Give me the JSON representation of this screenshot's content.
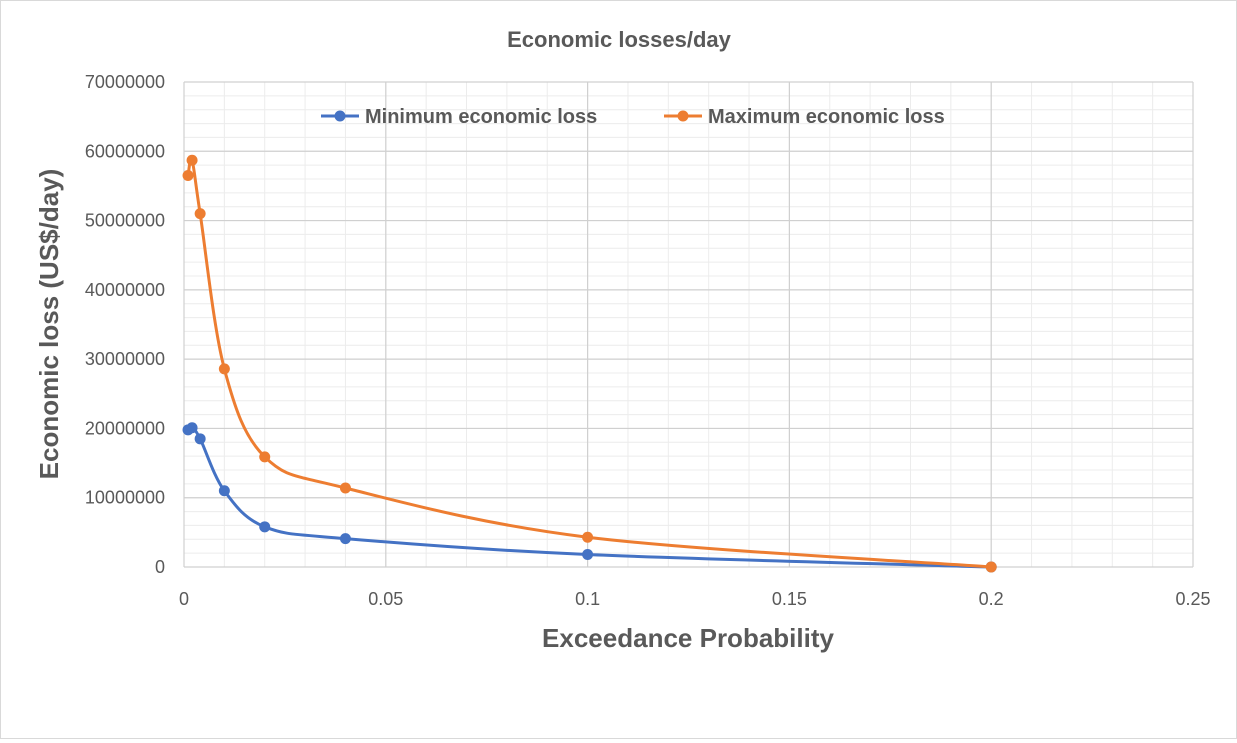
{
  "chart_data": {
    "type": "scatter",
    "title": "Economic losses/day",
    "xlabel": "Exceedance Probability",
    "ylabel": "Economic loss (US$/day)",
    "xlim": [
      0,
      0.25
    ],
    "ylim": [
      0,
      70000000
    ],
    "x_ticks": [
      "0",
      "0.05",
      "0.1",
      "0.15",
      "0.2",
      "0.25"
    ],
    "y_ticks": [
      "0",
      "10000000",
      "20000000",
      "30000000",
      "40000000",
      "50000000",
      "60000000",
      "70000000"
    ],
    "grid": true,
    "minor_grid": true,
    "smooth_lines": true,
    "legend_position": "top",
    "series": [
      {
        "name": "Minimum economic loss",
        "color": "#4472C4",
        "x": [
          0.001,
          0.002,
          0.004,
          0.01,
          0.02,
          0.04,
          0.1,
          0.2
        ],
        "y": [
          19800000,
          20100000,
          18500000,
          11000000,
          5800000,
          4100000,
          1800000,
          0
        ]
      },
      {
        "name": "Maximum economic loss",
        "color": "#ED7D31",
        "x": [
          0.001,
          0.002,
          0.004,
          0.01,
          0.02,
          0.04,
          0.1,
          0.2
        ],
        "y": [
          56500000,
          58700000,
          51000000,
          28600000,
          15900000,
          11400000,
          4300000,
          0
        ]
      }
    ]
  }
}
